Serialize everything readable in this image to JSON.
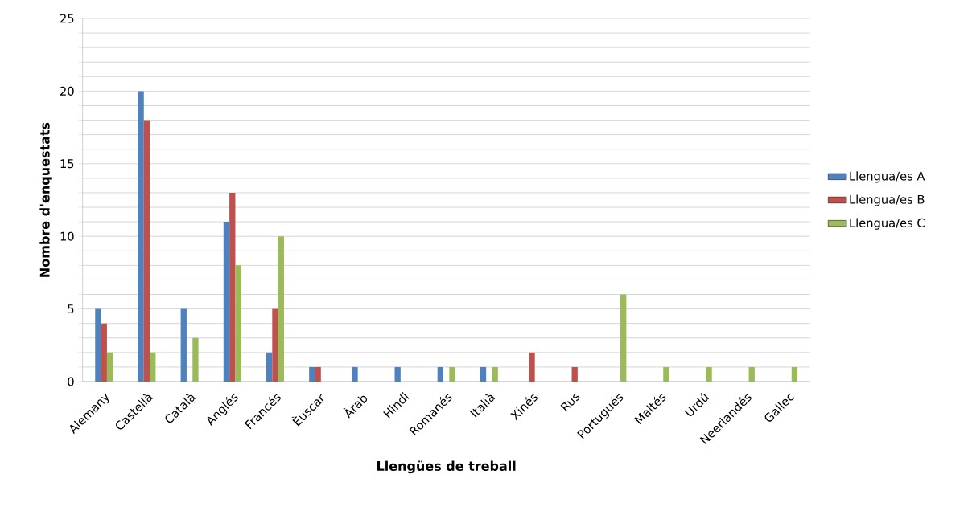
{
  "chart_data": {
    "type": "bar",
    "xlabel": "Llengües de treball",
    "ylabel": "Nombre d'enquestats",
    "categories": [
      "Alemany",
      "Castellà",
      "Català",
      "Anglés",
      "Francés",
      "Èuscar",
      "Àrab",
      "Hindi",
      "Romanés",
      "Italià",
      "Xinés",
      "Rus",
      "Portugués",
      "Maltés",
      "Urdú",
      "Neerlandés",
      "Gallec"
    ],
    "series": [
      {
        "name": "Llengua/es A",
        "color": "#4f81bd",
        "values": [
          5,
          20,
          5,
          11,
          2,
          1,
          1,
          1,
          1,
          1,
          0,
          0,
          0,
          0,
          0,
          0,
          0
        ]
      },
      {
        "name": "Llengua/es B",
        "color": "#c0504d",
        "values": [
          4,
          18,
          0,
          13,
          5,
          1,
          0,
          0,
          0,
          0,
          2,
          1,
          0,
          0,
          0,
          0,
          0
        ]
      },
      {
        "name": "Llengua/es C",
        "color": "#9bbb59",
        "values": [
          2,
          2,
          3,
          8,
          10,
          0,
          0,
          0,
          1,
          1,
          0,
          0,
          6,
          1,
          1,
          1,
          1
        ]
      }
    ],
    "ylim": [
      0,
      25
    ],
    "yticks": [
      0,
      {
        "value": 1,
        "label": null
      },
      {
        "value": 2,
        "label": null
      },
      {
        "value": 3,
        "label": null
      },
      {
        "value": 4,
        "label": null
      },
      5,
      {
        "value": 6,
        "label": null
      },
      {
        "value": 7,
        "label": null
      },
      {
        "value": 8,
        "label": null
      },
      {
        "value": 9,
        "label": null
      },
      10,
      {
        "value": 11,
        "label": null
      },
      {
        "value": 12,
        "label": null
      },
      {
        "value": 13,
        "label": null
      },
      {
        "value": 14,
        "label": null
      },
      15,
      {
        "value": 16,
        "label": null
      },
      {
        "value": 17,
        "label": null
      },
      {
        "value": 18,
        "label": null
      },
      {
        "value": 19,
        "label": null
      },
      20,
      {
        "value": 21,
        "label": null
      },
      {
        "value": 22,
        "label": null
      },
      {
        "value": 23,
        "label": null
      },
      {
        "value": 24,
        "label": null
      },
      25
    ],
    "grid": "y",
    "legend": "right"
  }
}
